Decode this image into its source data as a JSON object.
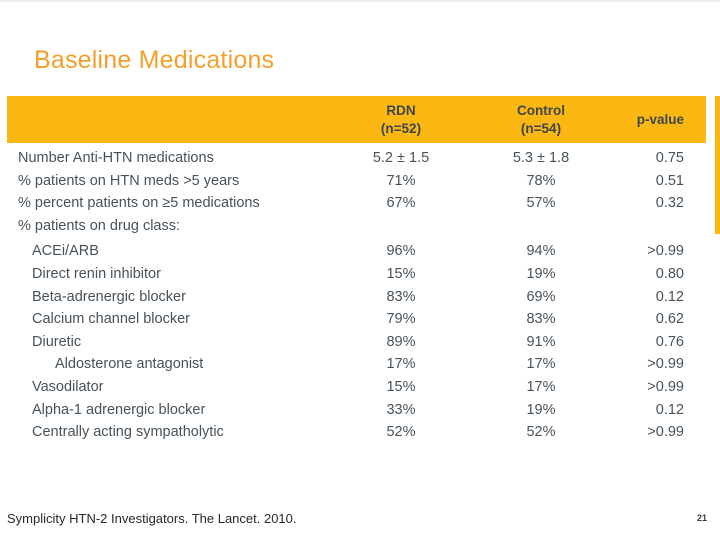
{
  "slide": {
    "title": "Baseline Medications",
    "footer": "Symplicity HTN-2 Investigators.  The Lancet. 2010.",
    "page_number": "21"
  },
  "colors": {
    "title_orange": "#F2A02B",
    "band_gold": "#FBB813",
    "body_text": "#47525A"
  },
  "table": {
    "columns": [
      {
        "label": "RDN\n(n=52)"
      },
      {
        "label": "Control\n(n=54)"
      },
      {
        "label": "p-value"
      }
    ],
    "rows": [
      {
        "label": "Number Anti-HTN medications",
        "rdn": "5.2 ± 1.5",
        "control": "5.3 ± 1.8",
        "p": "0.75"
      },
      {
        "label": "% patients on HTN meds >5 years",
        "rdn": "71%",
        "control": "78%",
        "p": "0.51"
      },
      {
        "label": "% percent patients on ≥5 medications",
        "rdn": "67%",
        "control": "57%",
        "p": "0.32"
      },
      {
        "label": "% patients on drug class:",
        "rdn": "",
        "control": "",
        "p": ""
      },
      {
        "label": "ACEi/ARB",
        "rdn": "96%",
        "control": "94%",
        "p": ">0.99"
      },
      {
        "label": "Direct renin inhibitor",
        "rdn": "15%",
        "control": "19%",
        "p": "0.80"
      },
      {
        "label": "Beta-adrenergic blocker",
        "rdn": "83%",
        "control": "69%",
        "p": "0.12"
      },
      {
        "label": "Calcium channel blocker",
        "rdn": "79%",
        "control": "83%",
        "p": "0.62"
      },
      {
        "label": "Diuretic",
        "rdn": "89%",
        "control": "91%",
        "p": "0.76"
      },
      {
        "label": "Aldosterone antagonist",
        "rdn": "17%",
        "control": "17%",
        "p": ">0.99"
      },
      {
        "label": "Vasodilator",
        "rdn": "15%",
        "control": "17%",
        "p": ">0.99"
      },
      {
        "label": "Alpha-1 adrenergic blocker",
        "rdn": "33%",
        "control": "19%",
        "p": "0.12"
      },
      {
        "label": "Centrally acting sympatholytic",
        "rdn": "52%",
        "control": "52%",
        "p": ">0.99"
      }
    ]
  }
}
